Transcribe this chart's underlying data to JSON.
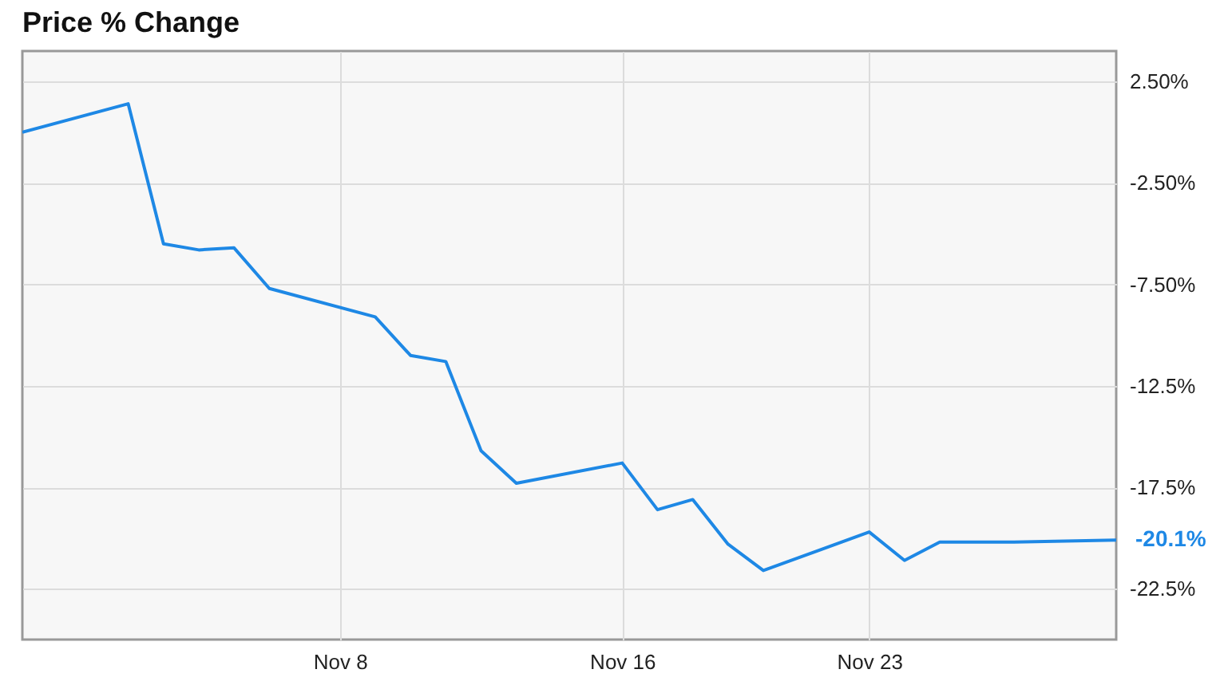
{
  "chart_data": {
    "type": "line",
    "title": "Price % Change",
    "x": [
      "--10-30",
      "--11-02",
      "--11-03",
      "--11-04",
      "--11-05",
      "--11-06",
      "--11-09",
      "--11-10",
      "--11-11",
      "--11-12",
      "--11-13",
      "--11-16",
      "--11-17",
      "--11-18",
      "--11-19",
      "--11-20",
      "--11-23",
      "--11-24",
      "--11-25",
      "--11-27",
      "--11-30"
    ],
    "series": [
      {
        "color": "#1e88e5",
        "values": [
          0.0,
          1.4,
          -5.5,
          -5.8,
          -5.7,
          -7.7,
          -9.1,
          -11.0,
          -11.3,
          -15.7,
          -17.3,
          -16.3,
          -18.6,
          -18.1,
          -20.3,
          -21.6,
          -19.7,
          -21.1,
          -20.2,
          -20.2,
          -20.1
        ]
      }
    ],
    "xlim": [
      "--10-30",
      "--11-30"
    ],
    "xticks": [
      {
        "value": "--11-08",
        "label": "Nov 8"
      },
      {
        "value": "--11-16",
        "label": "Nov 16"
      },
      {
        "value": "--11-23",
        "label": "Nov 23"
      }
    ],
    "ylim": [
      -25,
      4
    ],
    "yticks": [
      {
        "value": 2.5,
        "label": "2.50%"
      },
      {
        "value": -2.5,
        "label": "-2.50%"
      },
      {
        "value": -7.5,
        "label": "-7.50%"
      },
      {
        "value": -12.5,
        "label": "-12.5%"
      },
      {
        "value": -17.5,
        "label": "-17.5%"
      },
      {
        "value": -22.5,
        "label": "-22.5%"
      }
    ],
    "annotations": [
      {
        "text": "-20.1%",
        "x": "--11-30",
        "y": -20.1
      }
    ],
    "grid": true,
    "marker": "none",
    "line_style": "solid"
  }
}
